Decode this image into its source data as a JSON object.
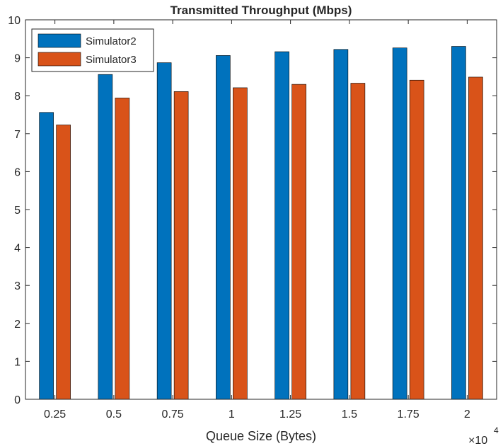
{
  "chart_data": {
    "type": "bar",
    "title": "Transmitted Throughput (Mbps)",
    "xlabel": "Queue Size (Bytes)",
    "ylabel": "",
    "x_exponent_base": "×10",
    "x_exponent_power": "4",
    "categories": [
      "0.25",
      "0.5",
      "0.75",
      "1",
      "1.25",
      "1.5",
      "1.75",
      "2"
    ],
    "ylim": [
      0,
      10
    ],
    "yticks": [
      "0",
      "1",
      "2",
      "3",
      "4",
      "5",
      "6",
      "7",
      "8",
      "9",
      "10"
    ],
    "series": [
      {
        "name": "Simulator2",
        "color": "#0072BD",
        "values": [
          7.56,
          8.56,
          8.87,
          9.06,
          9.16,
          9.22,
          9.26,
          9.3
        ]
      },
      {
        "name": "Simulator3",
        "color": "#D95319",
        "values": [
          7.23,
          7.94,
          8.11,
          8.21,
          8.3,
          8.33,
          8.41,
          8.49
        ]
      }
    ],
    "legend_position": "top-left",
    "grid": false
  }
}
